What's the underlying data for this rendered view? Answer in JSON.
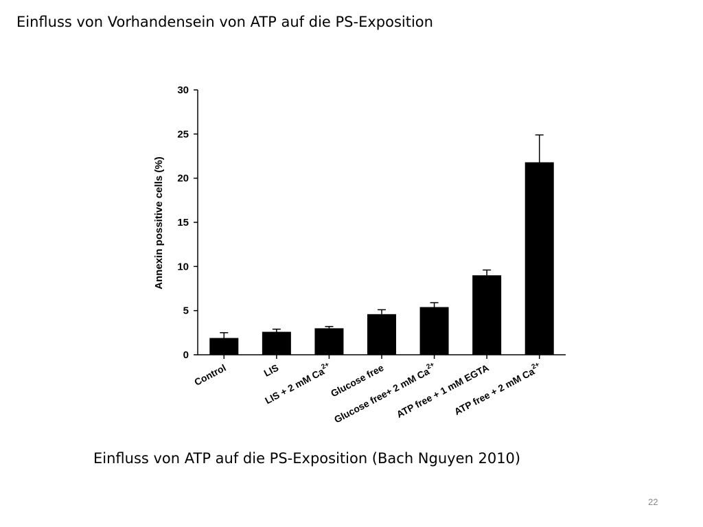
{
  "slide": {
    "title": "Einfluss von Vorhandensein von ATP auf die PS-Exposition",
    "caption": "Einfluss von ATP auf die PS-Exposition (Bach Nguyen 2010)",
    "page_number": "22"
  },
  "chart_data": {
    "type": "bar",
    "categories": [
      {
        "text": "Control",
        "sup": ""
      },
      {
        "text": "LIS",
        "sup": ""
      },
      {
        "text": "LIS + 2 mM Ca",
        "sup": "2+"
      },
      {
        "text": "Glucose free",
        "sup": ""
      },
      {
        "text": "Glucose free+ 2 mM Ca",
        "sup": "2+"
      },
      {
        "text": "ATP free + 1 mM EGTA",
        "sup": ""
      },
      {
        "text": "ATP free + 2 mM Ca",
        "sup": "2+"
      }
    ],
    "values": [
      1.9,
      2.6,
      3.0,
      4.6,
      5.4,
      9.0,
      21.8
    ],
    "errors": [
      0.6,
      0.3,
      0.2,
      0.5,
      0.5,
      0.6,
      3.1
    ],
    "ylabel": "Annexin possitive cells (%)",
    "ylim": [
      0,
      30
    ],
    "yticks": [
      0,
      5,
      10,
      15,
      20,
      25,
      30
    ],
    "bar_color": "#000000"
  }
}
